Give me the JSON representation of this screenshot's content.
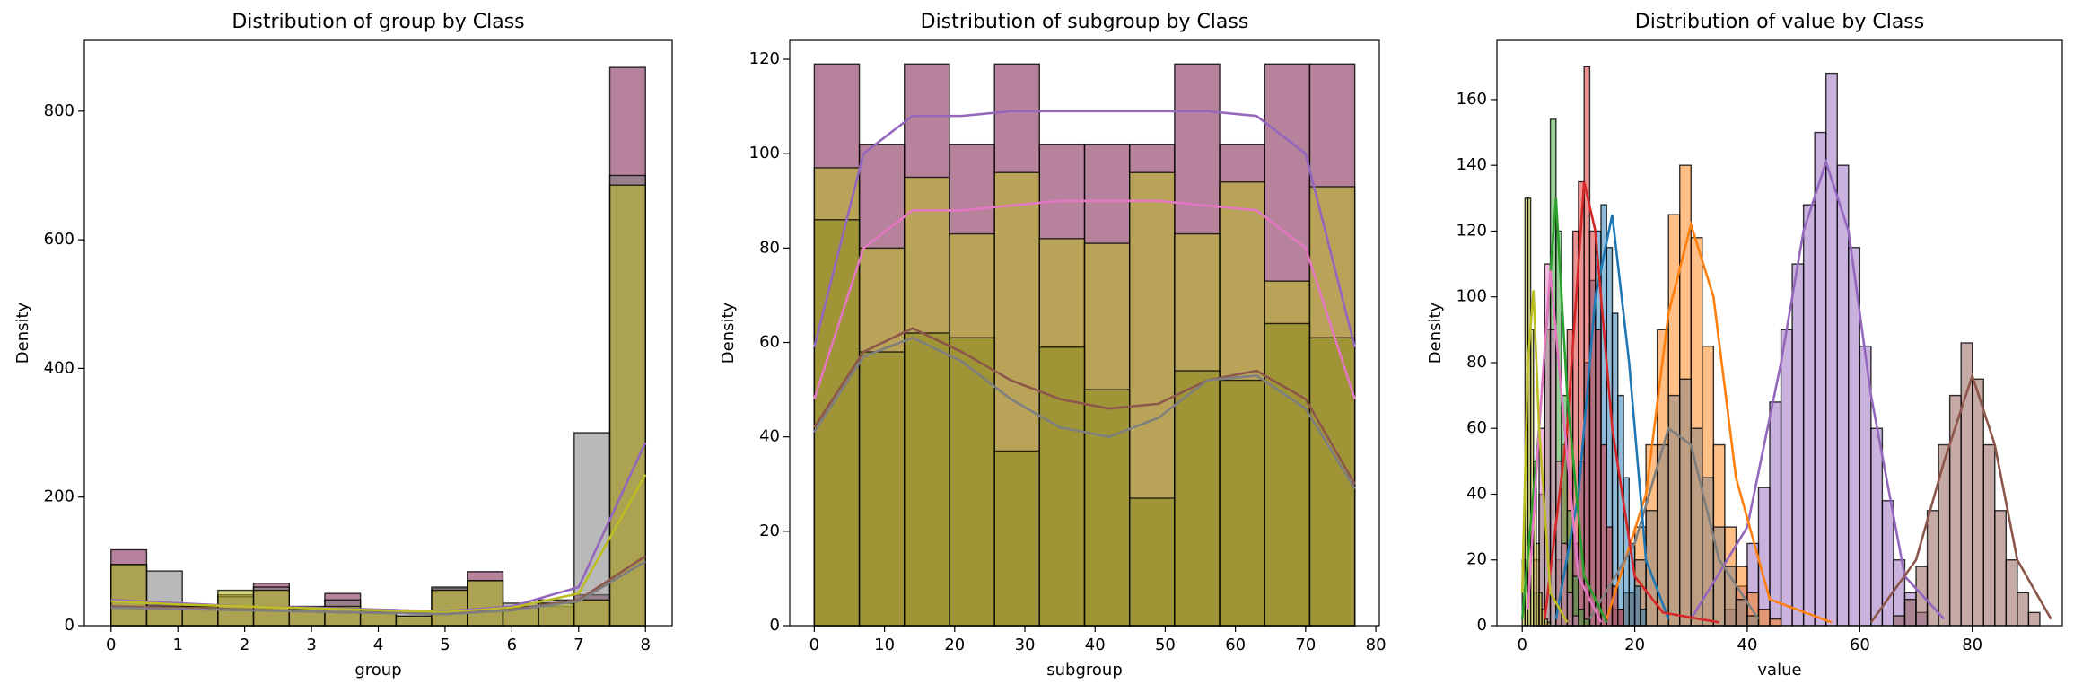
{
  "chart_data": [
    {
      "type": "histogram",
      "title": "Distribution of group by Class",
      "xlabel": "group",
      "ylabel": "Density",
      "xlim": [
        -0.4,
        8.4
      ],
      "ylim": [
        0,
        910
      ],
      "xticks": [
        0,
        1,
        2,
        3,
        4,
        5,
        6,
        7,
        8
      ],
      "yticks": [
        0,
        200,
        400,
        600,
        800
      ],
      "alpha": 0.55,
      "series": [
        {
          "color": "#7b1e4a",
          "bins": [
            0,
            0.533,
            1.067,
            1.6,
            2.133,
            2.667,
            3.2,
            3.733,
            4.267,
            4.8,
            5.333,
            5.867,
            6.4,
            6.933,
            7.467,
            8
          ],
          "values": [
            118,
            32,
            30,
            48,
            66,
            30,
            50,
            22,
            12,
            58,
            84,
            28,
            30,
            48,
            868
          ]
        },
        {
          "color": "#7f7f7f",
          "bins": [
            0,
            0.533,
            1.067,
            1.6,
            2.133,
            2.667,
            3.2,
            3.733,
            4.267,
            4.8,
            5.333,
            5.867,
            6.4,
            6.933,
            7.467,
            8
          ],
          "values": [
            95,
            85,
            30,
            45,
            60,
            28,
            40,
            25,
            15,
            60,
            70,
            35,
            40,
            300,
            700
          ]
        },
        {
          "color": "#bcbd22",
          "bins": [
            0,
            0.533,
            1.067,
            1.6,
            2.133,
            2.667,
            3.2,
            3.733,
            4.267,
            4.8,
            5.333,
            5.867,
            6.4,
            6.933,
            7.467,
            8
          ],
          "values": [
            95,
            30,
            30,
            55,
            55,
            25,
            30,
            20,
            15,
            55,
            70,
            30,
            35,
            40,
            685
          ]
        }
      ],
      "lines": [
        {
          "color": "#9467bd",
          "x": [
            0,
            1,
            2,
            3,
            4,
            5,
            6,
            7,
            8
          ],
          "values": [
            40,
            35,
            30,
            28,
            25,
            22,
            30,
            60,
            285
          ]
        },
        {
          "color": "#bcbd22",
          "x": [
            0,
            1,
            2,
            3,
            4,
            5,
            6,
            7,
            8
          ],
          "values": [
            38,
            33,
            30,
            27,
            24,
            21,
            28,
            50,
            235
          ]
        },
        {
          "color": "#8c564b",
          "x": [
            0,
            1,
            2,
            3,
            4,
            5,
            6,
            7,
            8
          ],
          "values": [
            30,
            28,
            25,
            22,
            20,
            18,
            25,
            40,
            108
          ]
        },
        {
          "color": "#7f7f7f",
          "x": [
            0,
            1,
            2,
            3,
            4,
            5,
            6,
            7,
            8
          ],
          "values": [
            28,
            26,
            24,
            22,
            20,
            18,
            24,
            38,
            100
          ]
        }
      ]
    },
    {
      "type": "histogram",
      "title": "Distribution of subgroup by Class",
      "xlabel": "subgroup",
      "ylabel": "Density",
      "xlim": [
        -3.5,
        80.5
      ],
      "ylim": [
        0,
        124
      ],
      "xticks": [
        0,
        10,
        20,
        30,
        40,
        50,
        60,
        70,
        80
      ],
      "yticks": [
        0,
        20,
        40,
        60,
        80,
        100,
        120
      ],
      "alpha": 0.55,
      "series": [
        {
          "color": "#7b1e4a",
          "bins": [
            0,
            6.42,
            12.83,
            19.25,
            25.67,
            32.08,
            38.5,
            44.92,
            51.33,
            57.75,
            64.17,
            70.58,
            77
          ],
          "values": [
            119,
            102,
            119,
            102,
            119,
            102,
            102,
            102,
            119,
            102,
            119,
            119
          ]
        },
        {
          "color": "#bcbd22",
          "bins": [
            0,
            6.42,
            12.83,
            19.25,
            25.67,
            32.08,
            38.5,
            44.92,
            51.33,
            57.75,
            64.17,
            70.58,
            77
          ],
          "values": [
            97,
            80,
            95,
            83,
            96,
            82,
            81,
            96,
            83,
            94,
            73,
            93
          ]
        },
        {
          "color": "#8a8a1a",
          "bins": [
            0,
            6.42,
            12.83,
            19.25,
            25.67,
            32.08,
            38.5,
            44.92,
            51.33,
            57.75,
            64.17,
            70.58,
            77
          ],
          "values": [
            86,
            58,
            62,
            61,
            37,
            59,
            50,
            27,
            54,
            52,
            64,
            61
          ]
        }
      ],
      "lines": [
        {
          "color": "#9467bd",
          "x": [
            0,
            7,
            14,
            21,
            28,
            35,
            42,
            49,
            56,
            63,
            70,
            77
          ],
          "values": [
            59,
            100,
            108,
            108,
            109,
            109,
            109,
            109,
            109,
            108,
            100,
            59
          ]
        },
        {
          "color": "#e377c2",
          "x": [
            0,
            7,
            14,
            21,
            28,
            35,
            42,
            49,
            56,
            63,
            70,
            77
          ],
          "values": [
            48,
            80,
            88,
            88,
            89,
            90,
            90,
            90,
            89,
            88,
            80,
            48
          ]
        },
        {
          "color": "#8c564b",
          "x": [
            0,
            7,
            14,
            21,
            28,
            35,
            42,
            49,
            56,
            63,
            70,
            77
          ],
          "values": [
            42,
            58,
            63,
            58,
            52,
            48,
            46,
            47,
            52,
            54,
            48,
            30
          ]
        },
        {
          "color": "#7f7f7f",
          "x": [
            0,
            7,
            14,
            21,
            28,
            35,
            42,
            49,
            56,
            63,
            70,
            77
          ],
          "values": [
            41,
            57,
            61,
            56,
            48,
            42,
            40,
            44,
            52,
            53,
            46,
            29
          ]
        }
      ]
    },
    {
      "type": "histogram",
      "title": "Distribution of value by Class",
      "xlabel": "value",
      "ylabel": "Density",
      "xlim": [
        -4.5,
        96
      ],
      "ylim": [
        0,
        178
      ],
      "xticks": [
        0,
        20,
        40,
        60,
        80
      ],
      "yticks": [
        0,
        20,
        40,
        60,
        80,
        100,
        120,
        140,
        160
      ],
      "alpha": 0.5,
      "series": [
        {
          "color": "#9467bd",
          "bins": [
            36,
            38,
            40,
            42,
            44,
            46,
            48,
            50,
            52,
            54,
            56,
            58,
            60,
            62,
            64,
            66,
            68,
            70,
            72
          ],
          "values": [
            5,
            12,
            25,
            42,
            68,
            90,
            110,
            128,
            150,
            168,
            140,
            115,
            85,
            60,
            38,
            20,
            10,
            4
          ]
        },
        {
          "color": "#8c564b",
          "bins": [
            66,
            68,
            70,
            72,
            74,
            76,
            78,
            80,
            82,
            84,
            86,
            88,
            90,
            92
          ],
          "values": [
            3,
            8,
            18,
            35,
            55,
            70,
            86,
            75,
            55,
            35,
            20,
            10,
            4
          ]
        },
        {
          "color": "#ff7f0e",
          "bins": [
            18,
            20,
            22,
            24,
            26,
            28,
            30,
            32,
            34,
            36,
            38,
            40,
            42,
            44,
            46
          ],
          "values": [
            10,
            30,
            55,
            90,
            125,
            140,
            118,
            85,
            55,
            30,
            18,
            10,
            5,
            2
          ]
        },
        {
          "color": "#7f7f7f",
          "bins": [
            16,
            18,
            20,
            22,
            24,
            26,
            28,
            30,
            32,
            34,
            36,
            38,
            40,
            42
          ],
          "values": [
            5,
            10,
            20,
            35,
            55,
            70,
            75,
            60,
            45,
            30,
            18,
            8,
            3
          ]
        },
        {
          "color": "#1f77b4",
          "bins": [
            8,
            9,
            10,
            11,
            12,
            13,
            14,
            15,
            16,
            17,
            18,
            19,
            20,
            21,
            22
          ],
          "values": [
            10,
            25,
            50,
            80,
            105,
            120,
            128,
            115,
            95,
            70,
            45,
            25,
            12,
            5
          ]
        },
        {
          "color": "#d62728",
          "bins": [
            6,
            7,
            8,
            9,
            10,
            11,
            12,
            13,
            14,
            15,
            16,
            17,
            18
          ],
          "values": [
            20,
            55,
            90,
            120,
            135,
            170,
            120,
            90,
            55,
            30,
            12,
            5
          ]
        },
        {
          "color": "#2ca02c",
          "bins": [
            2,
            3,
            4,
            5,
            6,
            7,
            8,
            9,
            10,
            11,
            12
          ],
          "values": [
            10,
            40,
            90,
            154,
            120,
            70,
            35,
            15,
            5,
            2
          ]
        },
        {
          "color": "#e377c2",
          "bins": [
            2,
            3,
            4,
            5,
            6,
            7,
            8,
            9,
            10
          ],
          "values": [
            20,
            60,
            110,
            90,
            50,
            25,
            10,
            3
          ]
        },
        {
          "color": "#bcbd22",
          "bins": [
            0,
            0.5,
            1,
            1.5,
            2,
            2.5,
            3,
            3.5,
            4,
            4.5,
            5
          ],
          "values": [
            20,
            130,
            130,
            90,
            50,
            25,
            10,
            5,
            2,
            1
          ]
        }
      ],
      "lines": [
        {
          "color": "#9467bd",
          "x": [
            30,
            40,
            46,
            50,
            54,
            58,
            62,
            68,
            75
          ],
          "values": [
            2,
            30,
            80,
            120,
            141,
            120,
            70,
            15,
            2
          ]
        },
        {
          "color": "#8c564b",
          "x": [
            62,
            70,
            75,
            80,
            84,
            88,
            94
          ],
          "values": [
            1,
            20,
            50,
            76,
            55,
            20,
            2
          ]
        },
        {
          "color": "#ff7f0e",
          "x": [
            15,
            22,
            26,
            30,
            34,
            38,
            44,
            55
          ],
          "values": [
            2,
            40,
            95,
            122,
            100,
            45,
            8,
            1
          ]
        },
        {
          "color": "#7f7f7f",
          "x": [
            12,
            20,
            26,
            30,
            35,
            42
          ],
          "values": [
            2,
            25,
            60,
            55,
            20,
            2
          ]
        },
        {
          "color": "#1f77b4",
          "x": [
            6,
            10,
            13,
            16,
            19,
            22,
            26
          ],
          "values": [
            2,
            40,
            100,
            125,
            80,
            20,
            2
          ]
        },
        {
          "color": "#d62728",
          "x": [
            4,
            8,
            11,
            13,
            16,
            20,
            25,
            35
          ],
          "values": [
            2,
            60,
            135,
            120,
            60,
            15,
            4,
            1
          ]
        },
        {
          "color": "#2ca02c",
          "x": [
            0,
            3,
            6,
            8,
            11,
            15
          ],
          "values": [
            2,
            60,
            130,
            70,
            15,
            1
          ]
        },
        {
          "color": "#e377c2",
          "x": [
            1,
            3,
            5,
            7,
            10,
            14
          ],
          "values": [
            5,
            60,
            108,
            70,
            15,
            1
          ]
        },
        {
          "color": "#bcbd22",
          "x": [
            0,
            1,
            2,
            3,
            5,
            8
          ],
          "values": [
            10,
            80,
            102,
            60,
            10,
            1
          ]
        }
      ]
    }
  ]
}
